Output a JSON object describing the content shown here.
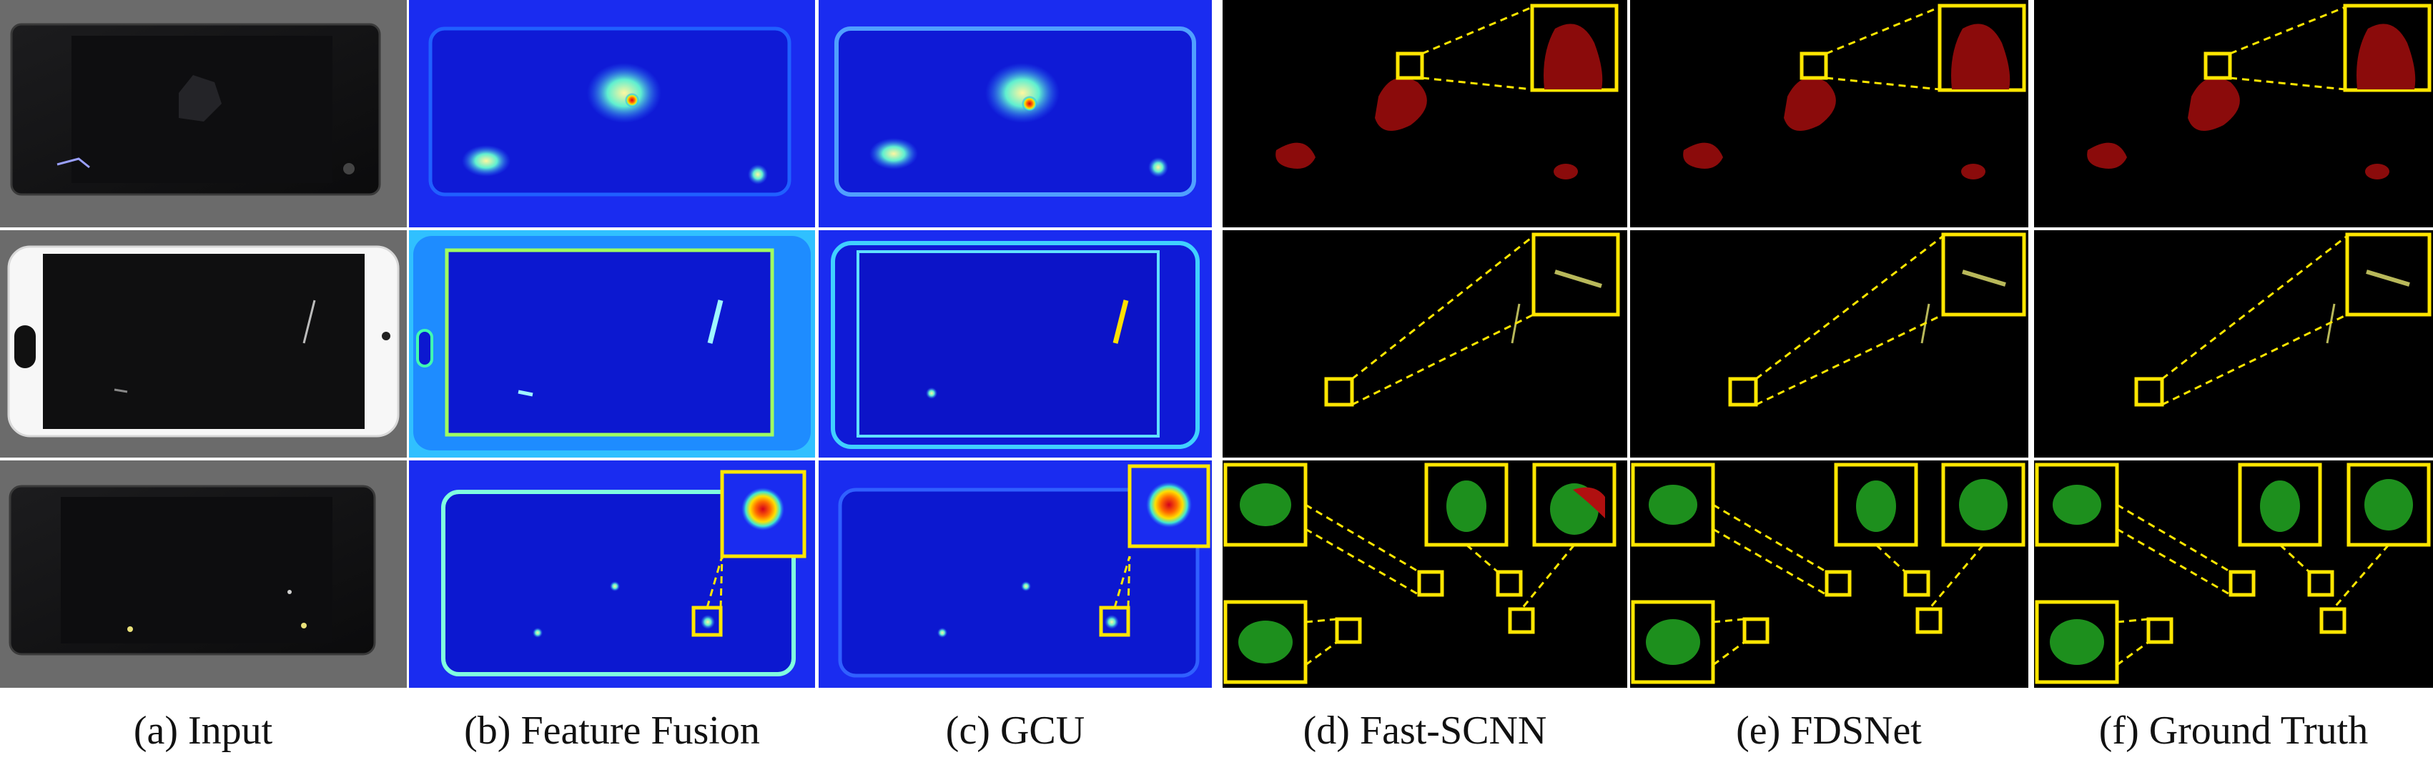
{
  "figure": {
    "columns": [
      {
        "id": "input",
        "caption": "(a) Input",
        "kind": "photo"
      },
      {
        "id": "feature-fusion",
        "caption": "(b) Feature Fusion",
        "kind": "heatmap"
      },
      {
        "id": "gcu",
        "caption": "(c) GCU",
        "kind": "heatmap"
      },
      {
        "id": "fast-scnn",
        "caption": "(d) Fast-SCNN",
        "kind": "mask"
      },
      {
        "id": "fdsnet",
        "caption": "(e) FDSNet",
        "kind": "mask"
      },
      {
        "id": "ground-truth",
        "caption": "(f) Ground Truth",
        "kind": "mask"
      }
    ],
    "rows": [
      {
        "id": "row-oil",
        "defect_color": "#8b0b0b",
        "phone": "black"
      },
      {
        "id": "row-scratch",
        "defect_color": "#b8b85a",
        "phone": "white"
      },
      {
        "id": "row-stain",
        "defect_color": "#1d8f1d",
        "phone": "black"
      }
    ],
    "colors": {
      "highlight": "#ffe600",
      "heatmap_low": "#0a1ee8",
      "heatmap_high": "#ff2a00",
      "mask_background": "#000000",
      "photo_background": "#6b6b6b"
    }
  }
}
